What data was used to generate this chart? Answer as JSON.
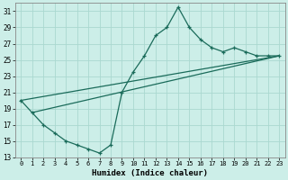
{
  "xlabel": "Humidex (Indice chaleur)",
  "bg_color": "#cceee8",
  "grid_color": "#aad8d0",
  "line_color": "#1a6b5a",
  "ylim": [
    13,
    32
  ],
  "xlim": [
    -0.5,
    23.5
  ],
  "yticks": [
    13,
    15,
    17,
    19,
    21,
    23,
    25,
    27,
    29,
    31
  ],
  "xticks": [
    0,
    1,
    2,
    3,
    4,
    5,
    6,
    7,
    8,
    9,
    10,
    11,
    12,
    13,
    14,
    15,
    16,
    17,
    18,
    19,
    20,
    21,
    22,
    23
  ],
  "curve1_x": [
    0,
    1,
    2,
    3,
    4,
    5,
    6,
    7,
    8,
    9,
    10,
    11,
    12,
    13,
    14,
    15,
    16,
    17,
    18,
    19,
    20,
    21,
    22,
    23
  ],
  "curve1_y": [
    20,
    18.5,
    17,
    16,
    15,
    14.5,
    14,
    13.5,
    14.5,
    21,
    23.5,
    25.5,
    28,
    29,
    31.5,
    29,
    27.5,
    26.5,
    26,
    26.5,
    26,
    25.5,
    25.5,
    25.5
  ],
  "line2_x": [
    0,
    23
  ],
  "line2_y": [
    20,
    25.5
  ],
  "line3_x": [
    2,
    23
  ],
  "line3_y": [
    17,
    25.5
  ],
  "line4_x": [
    1,
    23
  ],
  "line4_y": [
    18.5,
    25.5
  ]
}
